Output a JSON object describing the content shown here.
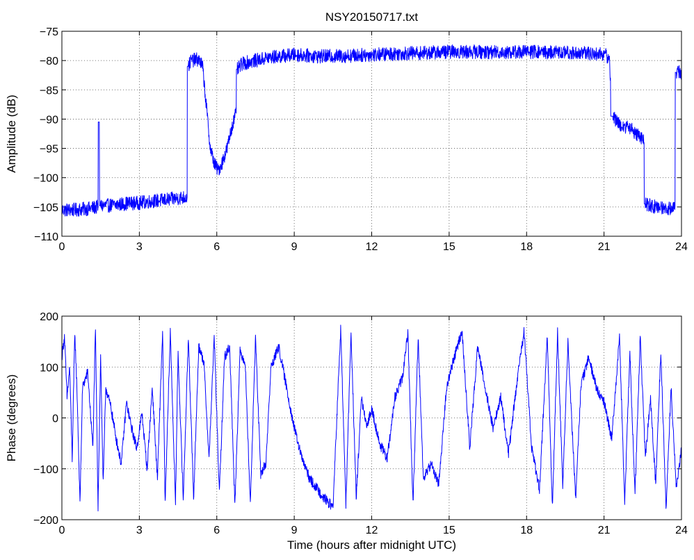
{
  "chart_data": [
    {
      "type": "line",
      "title": "NSY20150717.txt",
      "xlabel": "",
      "ylabel": "Amplitude (dB)",
      "xlim": [
        0,
        24
      ],
      "ylim": [
        -110,
        -75
      ],
      "xticks": [
        "0",
        "3",
        "6",
        "9",
        "12",
        "15",
        "18",
        "21",
        "24"
      ],
      "yticks": [
        "−75",
        "−80",
        "−85",
        "−90",
        "−95",
        "−100",
        "−105",
        "−110"
      ],
      "grid": true,
      "color": "#0000ff",
      "series": [
        {
          "points": [
            [
              0.0,
              -105.5
            ],
            [
              0.5,
              -105.5
            ],
            [
              1.0,
              -105.3
            ],
            [
              1.4,
              -105.0
            ],
            [
              1.45,
              -90.5
            ],
            [
              1.5,
              -104.8
            ],
            [
              2.0,
              -104.7
            ],
            [
              2.5,
              -104.4
            ],
            [
              3.0,
              -104.3
            ],
            [
              3.5,
              -104.0
            ],
            [
              4.0,
              -103.8
            ],
            [
              4.5,
              -103.5
            ],
            [
              4.85,
              -103.3
            ],
            [
              4.9,
              -81.0
            ],
            [
              5.0,
              -80.0
            ],
            [
              5.3,
              -79.8
            ],
            [
              5.45,
              -81.0
            ],
            [
              5.6,
              -88.0
            ],
            [
              5.75,
              -95.0
            ],
            [
              5.9,
              -97.5
            ],
            [
              6.05,
              -98.8
            ],
            [
              6.2,
              -97.5
            ],
            [
              6.4,
              -95.0
            ],
            [
              6.6,
              -91.0
            ],
            [
              6.75,
              -89.0
            ],
            [
              6.8,
              -81.5
            ],
            [
              7.0,
              -80.5
            ],
            [
              7.5,
              -80.0
            ],
            [
              8.0,
              -79.5
            ],
            [
              9.0,
              -79.0
            ],
            [
              10.0,
              -79.3
            ],
            [
              11.0,
              -79.2
            ],
            [
              12.0,
              -79.0
            ],
            [
              13.0,
              -78.8
            ],
            [
              14.0,
              -78.7
            ],
            [
              15.0,
              -78.5
            ],
            [
              16.0,
              -78.5
            ],
            [
              17.0,
              -78.6
            ],
            [
              18.0,
              -78.5
            ],
            [
              19.0,
              -78.6
            ],
            [
              20.0,
              -78.7
            ],
            [
              21.0,
              -78.9
            ],
            [
              21.2,
              -79.5
            ],
            [
              21.25,
              -83.0
            ],
            [
              21.35,
              -89.5
            ],
            [
              21.6,
              -91.0
            ],
            [
              22.0,
              -91.5
            ],
            [
              22.4,
              -93.0
            ],
            [
              22.55,
              -94.0
            ],
            [
              22.6,
              -104.5
            ],
            [
              23.0,
              -105.0
            ],
            [
              23.5,
              -105.2
            ],
            [
              23.75,
              -105.0
            ],
            [
              23.8,
              -82.0
            ],
            [
              24.0,
              -82.0
            ]
          ]
        }
      ]
    },
    {
      "type": "line",
      "title": "",
      "xlabel": "Time (hours after midnight UTC)",
      "ylabel": "Phase (degrees)",
      "xlim": [
        0,
        24
      ],
      "ylim": [
        -200,
        200
      ],
      "xticks": [
        "0",
        "3",
        "6",
        "9",
        "12",
        "15",
        "18",
        "21",
        "24"
      ],
      "yticks": [
        "200",
        "100",
        "0",
        "−100",
        "−200"
      ],
      "grid": true,
      "color": "#0000ff",
      "series": [
        {
          "points": [
            [
              0.0,
              120
            ],
            [
              0.1,
              160
            ],
            [
              0.2,
              40
            ],
            [
              0.3,
              100
            ],
            [
              0.4,
              -80
            ],
            [
              0.5,
              170
            ],
            [
              0.6,
              30
            ],
            [
              0.7,
              -170
            ],
            [
              0.8,
              60
            ],
            [
              1.0,
              90
            ],
            [
              1.2,
              -60
            ],
            [
              1.3,
              175
            ],
            [
              1.4,
              -175
            ],
            [
              1.5,
              120
            ],
            [
              1.6,
              -130
            ],
            [
              1.7,
              60
            ],
            [
              1.9,
              20
            ],
            [
              2.1,
              -40
            ],
            [
              2.3,
              -90
            ],
            [
              2.5,
              30
            ],
            [
              2.7,
              -20
            ],
            [
              2.9,
              -60
            ],
            [
              3.1,
              10
            ],
            [
              3.3,
              -100
            ],
            [
              3.5,
              60
            ],
            [
              3.7,
              -120
            ],
            [
              3.9,
              170
            ],
            [
              4.0,
              -170
            ],
            [
              4.2,
              170
            ],
            [
              4.4,
              -170
            ],
            [
              4.5,
              130
            ],
            [
              4.7,
              -160
            ],
            [
              4.9,
              160
            ],
            [
              5.1,
              -160
            ],
            [
              5.3,
              140
            ],
            [
              5.5,
              110
            ],
            [
              5.7,
              -80
            ],
            [
              5.9,
              160
            ],
            [
              6.1,
              -150
            ],
            [
              6.3,
              120
            ],
            [
              6.5,
              140
            ],
            [
              6.7,
              -170
            ],
            [
              6.9,
              130
            ],
            [
              7.1,
              110
            ],
            [
              7.3,
              -170
            ],
            [
              7.5,
              160
            ],
            [
              7.7,
              -110
            ],
            [
              7.9,
              -90
            ],
            [
              8.1,
              100
            ],
            [
              8.4,
              140
            ],
            [
              8.7,
              60
            ],
            [
              9.0,
              -20
            ],
            [
              9.3,
              -80
            ],
            [
              9.6,
              -120
            ],
            [
              9.9,
              -140
            ],
            [
              10.2,
              -160
            ],
            [
              10.5,
              -175
            ],
            [
              10.8,
              175
            ],
            [
              11.0,
              -170
            ],
            [
              11.2,
              170
            ],
            [
              11.4,
              -160
            ],
            [
              11.6,
              40
            ],
            [
              11.8,
              -20
            ],
            [
              12.0,
              20
            ],
            [
              12.3,
              -50
            ],
            [
              12.6,
              -80
            ],
            [
              12.9,
              40
            ],
            [
              13.2,
              80
            ],
            [
              13.4,
              170
            ],
            [
              13.6,
              -170
            ],
            [
              13.8,
              160
            ],
            [
              14.0,
              -120
            ],
            [
              14.3,
              -90
            ],
            [
              14.6,
              -130
            ],
            [
              14.9,
              60
            ],
            [
              15.2,
              120
            ],
            [
              15.5,
              170
            ],
            [
              15.8,
              -60
            ],
            [
              16.1,
              140
            ],
            [
              16.4,
              60
            ],
            [
              16.7,
              -20
            ],
            [
              17.0,
              40
            ],
            [
              17.3,
              -70
            ],
            [
              17.6,
              60
            ],
            [
              17.9,
              170
            ],
            [
              18.2,
              -60
            ],
            [
              18.5,
              -140
            ],
            [
              18.8,
              160
            ],
            [
              19.0,
              -175
            ],
            [
              19.2,
              170
            ],
            [
              19.4,
              -140
            ],
            [
              19.6,
              150
            ],
            [
              19.9,
              -160
            ],
            [
              20.1,
              60
            ],
            [
              20.4,
              120
            ],
            [
              20.7,
              60
            ],
            [
              21.0,
              30
            ],
            [
              21.3,
              -40
            ],
            [
              21.6,
              160
            ],
            [
              21.8,
              -170
            ],
            [
              22.0,
              130
            ],
            [
              22.2,
              -150
            ],
            [
              22.4,
              160
            ],
            [
              22.6,
              -80
            ],
            [
              22.8,
              40
            ],
            [
              23.0,
              -130
            ],
            [
              23.2,
              130
            ],
            [
              23.4,
              -175
            ],
            [
              23.6,
              60
            ],
            [
              23.8,
              -140
            ],
            [
              24.0,
              -60
            ]
          ]
        }
      ]
    }
  ]
}
